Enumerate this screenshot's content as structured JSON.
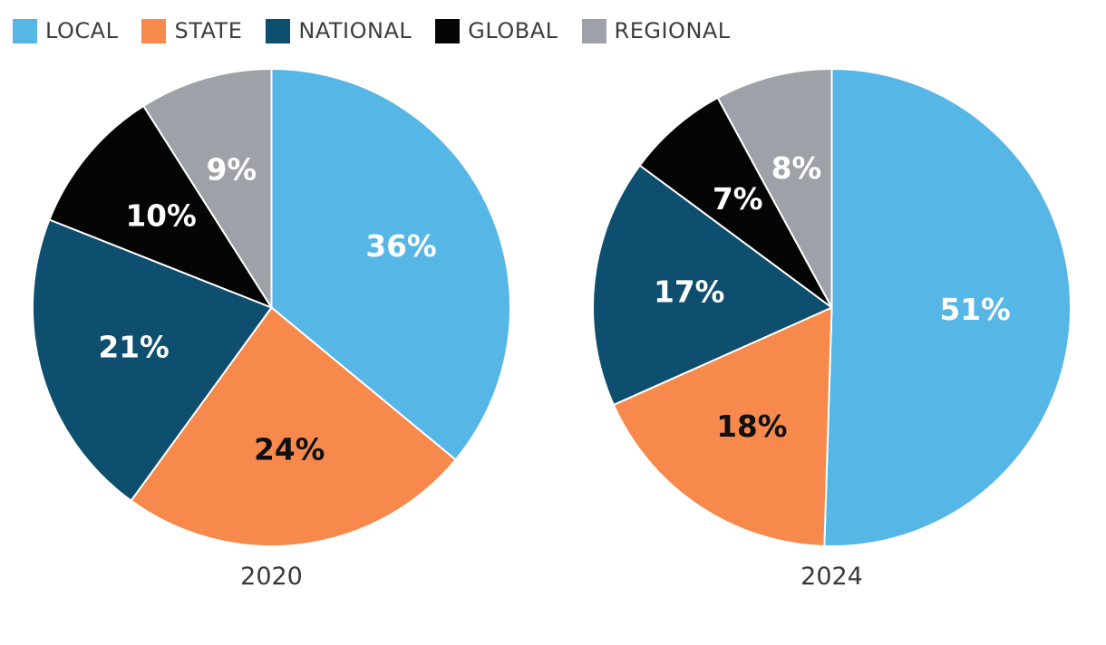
{
  "legend": {
    "items": [
      {
        "label": "LOCAL",
        "color": "#56B7E6"
      },
      {
        "label": "STATE",
        "color": "#F6894B"
      },
      {
        "label": "NATIONAL",
        "color": "#0E4E6E"
      },
      {
        "label": "GLOBAL",
        "color": "#050505"
      },
      {
        "label": "REGIONAL",
        "color": "#9EA2A8"
      }
    ],
    "text_color": "#3d3d3d"
  },
  "chart_data": [
    {
      "type": "pie",
      "title": "2020",
      "categories": [
        "LOCAL",
        "STATE",
        "NATIONAL",
        "GLOBAL",
        "REGIONAL"
      ],
      "values": [
        36,
        24,
        21,
        10,
        9
      ],
      "labels": [
        "36%",
        "24%",
        "21%",
        "10%",
        "9%"
      ],
      "colors": [
        "#56B7E6",
        "#F6894B",
        "#0E4E6E",
        "#050505",
        "#9EA2A8"
      ],
      "label_colors": [
        "#FFFFFF",
        "#101010",
        "#FFFFFF",
        "#FFFFFF",
        "#FFFFFF"
      ],
      "start_angle_deg": 0,
      "direction": "clockwise",
      "legend_position": "top-left"
    },
    {
      "type": "pie",
      "title": "2024",
      "categories": [
        "LOCAL",
        "STATE",
        "NATIONAL",
        "GLOBAL",
        "REGIONAL"
      ],
      "values": [
        51,
        18,
        17,
        7,
        8
      ],
      "labels": [
        "51%",
        "18%",
        "17%",
        "7%",
        "8%"
      ],
      "colors": [
        "#56B7E6",
        "#F6894B",
        "#0E4E6E",
        "#050505",
        "#9EA2A8"
      ],
      "label_colors": [
        "#FFFFFF",
        "#101010",
        "#FFFFFF",
        "#FFFFFF",
        "#FFFFFF"
      ],
      "start_angle_deg": 0,
      "direction": "clockwise",
      "legend_position": "top-left"
    }
  ]
}
